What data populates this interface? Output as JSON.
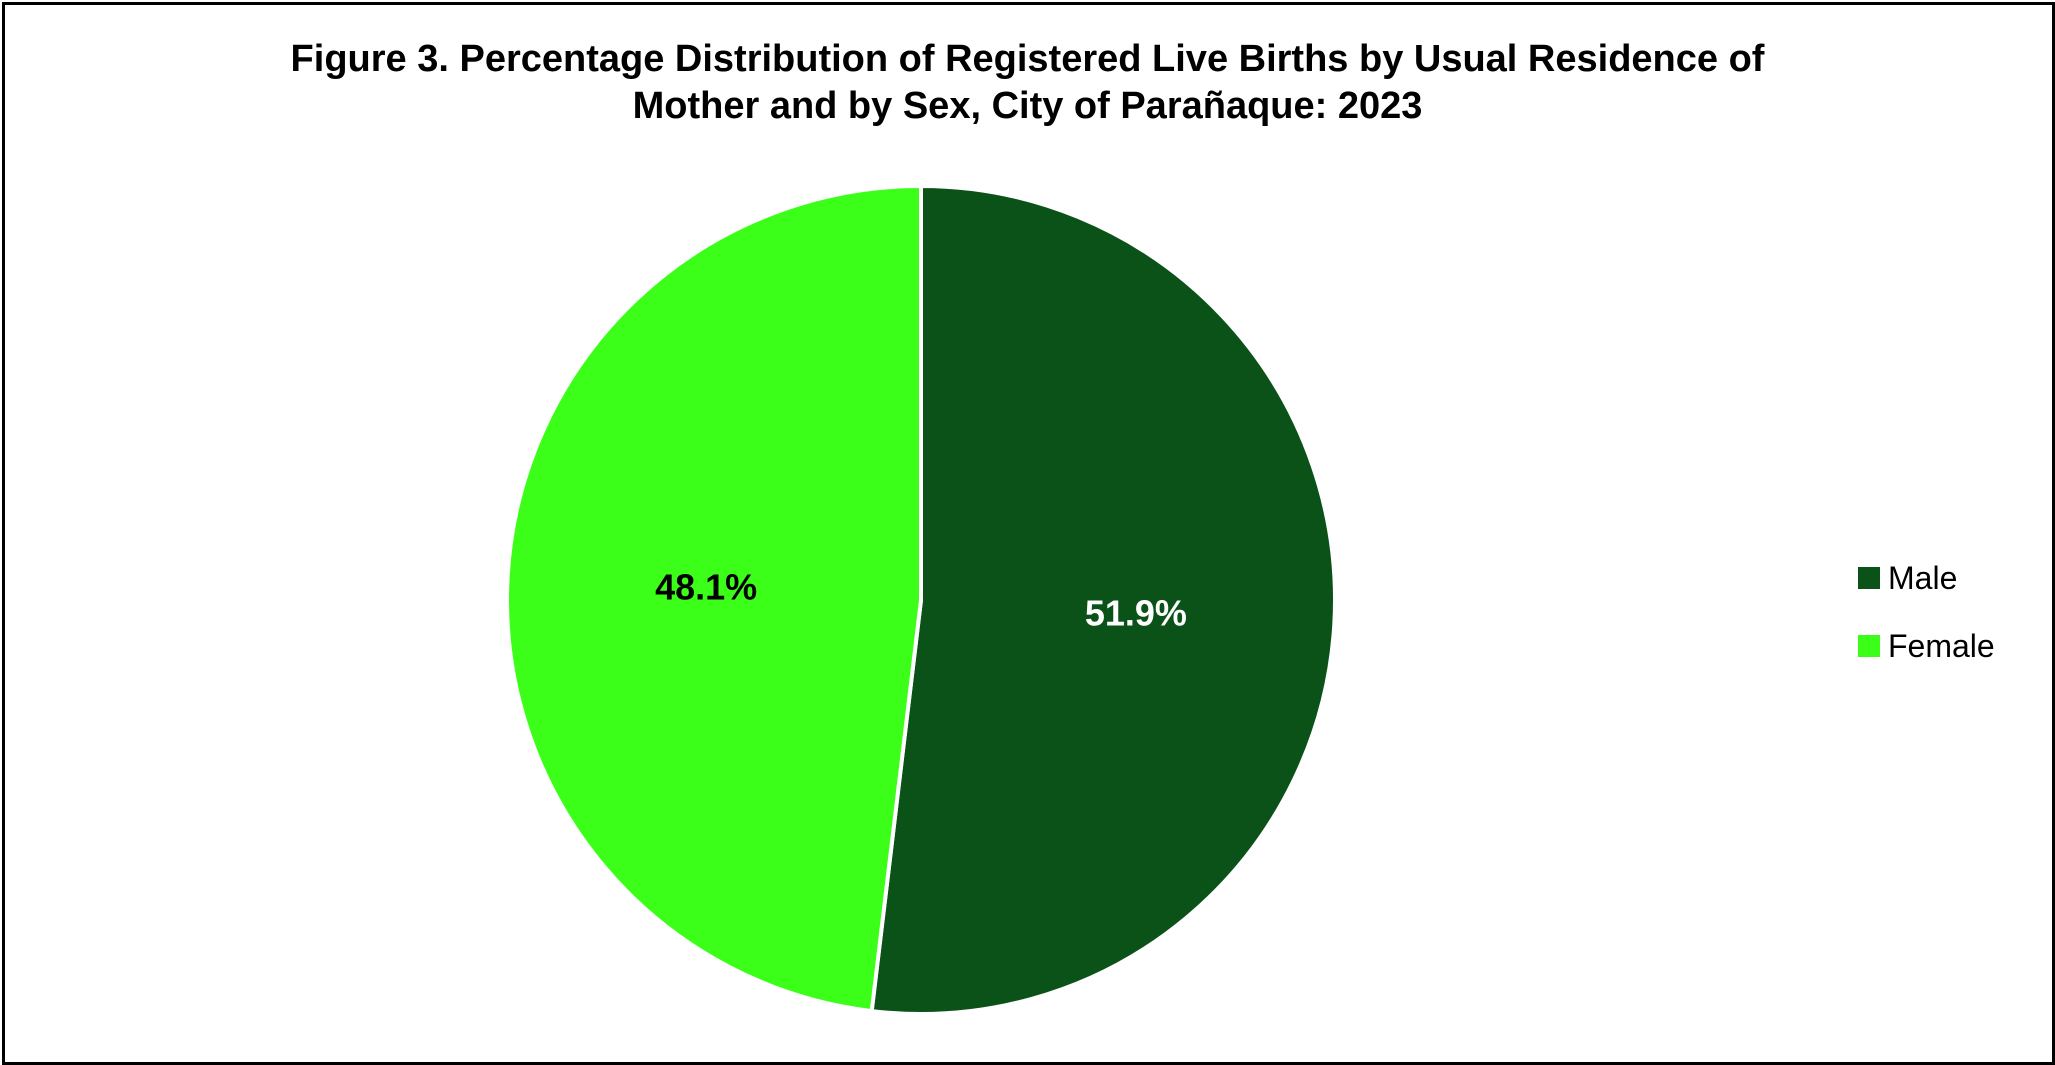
{
  "chart_data": {
    "type": "pie",
    "title_lines": [
      "Figure 3. Percentage Distribution of Registered Live Births by Usual Residence of",
      "Mother and by Sex, City of Parañaque: 2023"
    ],
    "slices": [
      {
        "name": "Male",
        "value": 51.9,
        "label": "51.9%",
        "color": "#0b5219",
        "label_color": "#ffffff"
      },
      {
        "name": "Female",
        "value": 48.1,
        "label": "48.1%",
        "color": "#3bff18",
        "label_color": "#000000"
      }
    ],
    "start_angle_deg": 0,
    "direction": "clockwise",
    "legend_position": "right"
  }
}
